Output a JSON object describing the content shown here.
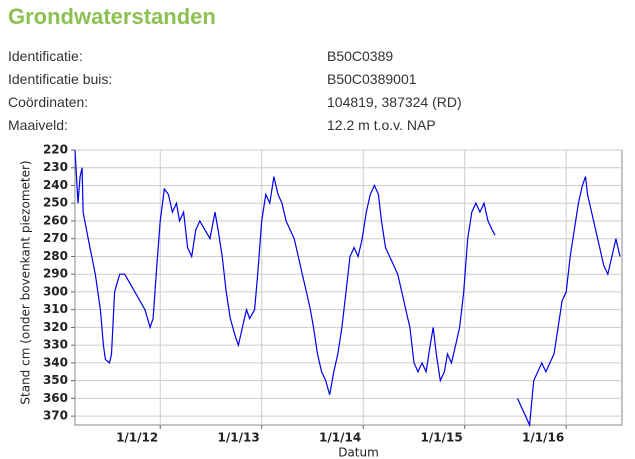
{
  "header": {
    "title": "Grondwaterstanden"
  },
  "info": {
    "rows": [
      [
        "Identificatie:",
        "B50C0389"
      ],
      [
        "Identificatie buis:",
        "B50C0389001"
      ],
      [
        "Coördinaten:",
        "104819, 387324 (RD)"
      ],
      [
        "Maaiveld:",
        "12.2 m t.o.v. NAP"
      ]
    ]
  },
  "chart_data": {
    "type": "line",
    "x_label": "Datum",
    "y_label": "Stand cm (onder bovenkant piezometer)",
    "xlim": [
      2011.16,
      2016.55
    ],
    "xticks": [
      {
        "value": 2012,
        "label": "1/1/12"
      },
      {
        "value": 2013,
        "label": "1/1/13"
      },
      {
        "value": 2014,
        "label": "1/1/14"
      },
      {
        "value": 2015,
        "label": "1/1/15"
      },
      {
        "value": 2016,
        "label": "1/1/16"
      }
    ],
    "ylim": [
      375,
      220
    ],
    "yticks": [
      220,
      230,
      240,
      250,
      260,
      270,
      280,
      290,
      300,
      310,
      320,
      330,
      340,
      350,
      360,
      370
    ],
    "grid": true,
    "x": [
      2011.16,
      2011.19,
      2011.21,
      2011.23,
      2011.24,
      2011.29,
      2011.36,
      2011.41,
      2011.44,
      2011.46,
      2011.5,
      2011.52,
      2011.55,
      2011.6,
      2011.65,
      2011.7,
      2011.75,
      2011.8,
      2011.85,
      2011.9,
      2011.93,
      2011.96,
      2012.0,
      2012.04,
      2012.08,
      2012.12,
      2012.16,
      2012.19,
      2012.23,
      2012.27,
      2012.31,
      2012.35,
      2012.39,
      2012.44,
      2012.49,
      2012.54,
      2012.57,
      2012.61,
      2012.65,
      2012.69,
      2012.74,
      2012.77,
      2012.81,
      2012.85,
      2012.88,
      2012.93,
      2012.96,
      2013.0,
      2013.04,
      2013.08,
      2013.12,
      2013.16,
      2013.2,
      2013.24,
      2013.28,
      2013.32,
      2013.36,
      2013.4,
      2013.44,
      2013.48,
      2013.51,
      2013.55,
      2013.59,
      2013.63,
      2013.67,
      2013.71,
      2013.75,
      2013.79,
      2013.83,
      2013.87,
      2013.91,
      2013.95,
      2013.99,
      2014.03,
      2014.07,
      2014.11,
      2014.15,
      2014.18,
      2014.22,
      2014.26,
      2014.3,
      2014.34,
      2014.38,
      2014.42,
      2014.46,
      2014.5,
      2014.54,
      2014.58,
      2014.62,
      2014.66,
      2014.69,
      2014.72,
      2014.76,
      2014.8,
      2014.83,
      2014.87,
      2014.91,
      2014.95,
      2014.99,
      2015.03,
      2015.07,
      2015.11,
      2015.15,
      2015.19,
      2015.23,
      2015.27,
      2015.3,
      2015.45,
      2015.52,
      2015.56,
      2015.6,
      2015.64,
      2015.68,
      2015.72,
      2015.76,
      2015.8,
      2015.84,
      2015.88,
      2015.92,
      2015.96,
      2016.0,
      2016.04,
      2016.08,
      2016.12,
      2016.16,
      2016.19,
      2016.21,
      2016.25,
      2016.29,
      2016.33,
      2016.37,
      2016.41,
      2016.45,
      2016.49,
      2016.53
    ],
    "series": [
      {
        "name": "Stand",
        "color": "#0000ee",
        "values": [
          220,
          250,
          235,
          230,
          255,
          270,
          290,
          310,
          330,
          338,
          340,
          335,
          300,
          290,
          290,
          295,
          300,
          305,
          310,
          320,
          315,
          290,
          260,
          242,
          245,
          255,
          250,
          260,
          255,
          275,
          280,
          265,
          260,
          265,
          270,
          255,
          265,
          280,
          300,
          315,
          325,
          330,
          320,
          310,
          315,
          310,
          290,
          260,
          245,
          250,
          235,
          245,
          250,
          260,
          265,
          270,
          280,
          290,
          300,
          310,
          320,
          335,
          345,
          350,
          358,
          345,
          335,
          320,
          300,
          280,
          275,
          280,
          270,
          255,
          245,
          240,
          245,
          260,
          275,
          280,
          285,
          290,
          300,
          310,
          320,
          340,
          345,
          340,
          345,
          330,
          320,
          335,
          350,
          345,
          335,
          340,
          330,
          320,
          300,
          270,
          255,
          250,
          255,
          250,
          260,
          265,
          268,
          null,
          360,
          365,
          370,
          375,
          350,
          345,
          340,
          345,
          340,
          335,
          320,
          305,
          300,
          280,
          265,
          250,
          240,
          235,
          245,
          255,
          265,
          275,
          285,
          290,
          280,
          270,
          280
        ]
      }
    ]
  }
}
